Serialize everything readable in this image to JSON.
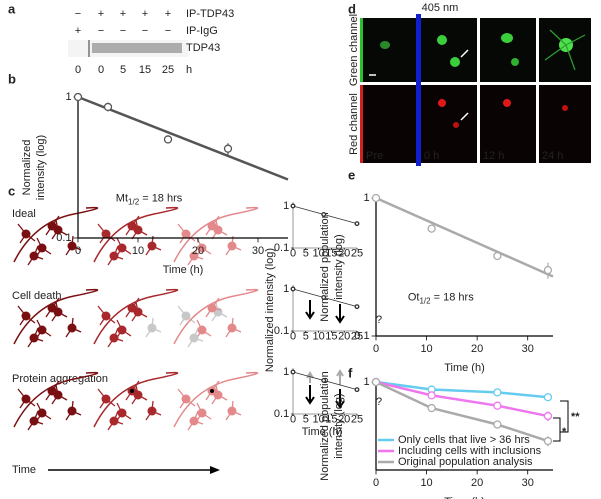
{
  "panel_labels": [
    "a",
    "b",
    "c",
    "d",
    "e",
    "f"
  ],
  "blot": {
    "rows": [
      {
        "label": "IP-TDP43",
        "marks": [
          "−",
          "+",
          "+",
          "+",
          "+"
        ]
      },
      {
        "label": "IP-IgG",
        "marks": [
          "+",
          "−",
          "−",
          "−",
          "−"
        ]
      }
    ],
    "band_label": "TDP43",
    "times": [
      "0",
      "0",
      "5",
      "15",
      "25"
    ],
    "unit": "h"
  },
  "diagram": {
    "rows": [
      "Ideal",
      "Cell death",
      "Protein aggregation"
    ],
    "time_label": "Time",
    "question_marks": [
      "?",
      "?"
    ],
    "ylabel": "Normalized intensity (log)",
    "xlabel": "Time (h)"
  },
  "images": {
    "stimulus": "405 nm",
    "channels": [
      "Green channel",
      "Red channel"
    ],
    "timepoints": [
      "Pre",
      "0 h",
      "12 h",
      "24 h"
    ]
  },
  "chart_data": [
    {
      "type": "line",
      "xlim": [
        0,
        35
      ],
      "ylim": [
        0.1,
        1
      ],
      "log_y": true,
      "xticks": [
        0,
        10,
        20,
        30
      ],
      "yticks": [
        0.1,
        1
      ],
      "xlabel": "Time (h)",
      "ylabel": [
        "Normalized",
        "intensity (log)"
      ],
      "annotation": {
        "text": "Mt",
        "sub": "1/2",
        "rest": " = 18 hrs"
      },
      "series": [
        {
          "mode": "line",
          "color": "#555555",
          "x": [
            0,
            35
          ],
          "values": [
            1,
            0.26
          ]
        },
        {
          "mode": "markers",
          "color": "#555555",
          "x": [
            0,
            5,
            15,
            25
          ],
          "values": [
            1,
            0.85,
            0.5,
            0.43
          ],
          "errors": [
            0.03,
            0.06,
            0.03,
            0.04
          ]
        }
      ]
    },
    {
      "type": "line",
      "xlim": [
        0,
        35
      ],
      "ylim": [
        0.1,
        1
      ],
      "log_y": true,
      "xticks": [
        0,
        10,
        20,
        30
      ],
      "yticks": [
        0.1,
        1
      ],
      "xlabel": "Time (h)",
      "ylabel": [
        "Normalized population",
        "intensity (log)"
      ],
      "annotation": {
        "text": "Ot",
        "sub": "1/2",
        "rest": " = 18 hrs"
      },
      "series": [
        {
          "mode": "line",
          "color": "#aaaaaa",
          "x": [
            0,
            35
          ],
          "values": [
            1,
            0.27
          ]
        },
        {
          "mode": "markers",
          "color": "#aaaaaa",
          "x": [
            0,
            11,
            24,
            34
          ],
          "values": [
            1,
            0.6,
            0.38,
            0.3
          ],
          "errors": [
            0.02,
            0.04,
            0.02,
            0.04
          ]
        }
      ]
    },
    {
      "type": "line",
      "xlim": [
        0,
        35
      ],
      "ylim": [
        0.15,
        1
      ],
      "log_y": true,
      "xticks": [
        0,
        10,
        20,
        30
      ],
      "yticks": [
        1
      ],
      "xlabel": "Time (h)",
      "ylabel": [
        "Normalized population",
        "intensity (log)"
      ],
      "legend": "lower left",
      "significance": [
        "**",
        "*"
      ],
      "series": [
        {
          "name": "Only cells that live > 36 hrs",
          "mode": "both",
          "color": "#66ccee",
          "x": [
            0,
            11,
            24,
            34
          ],
          "values": [
            1,
            0.85,
            0.8,
            0.72
          ],
          "errors": [
            0.01,
            0.02,
            0.02,
            0.02
          ]
        },
        {
          "name": "Including cells with inclusions",
          "mode": "both",
          "color": "#ee77ee",
          "x": [
            0,
            11,
            24,
            34
          ],
          "values": [
            1,
            0.75,
            0.6,
            0.48
          ],
          "errors": [
            0.01,
            0.03,
            0.03,
            0.05
          ]
        },
        {
          "name": "Original population analysis",
          "mode": "both",
          "color": "#aaaaaa",
          "x": [
            0,
            11,
            24,
            34
          ],
          "values": [
            1,
            0.57,
            0.4,
            0.28
          ],
          "errors": [
            0.01,
            0.03,
            0.02,
            0.03
          ]
        }
      ]
    },
    {
      "type": "line",
      "xlim": [
        0,
        25
      ],
      "ylim": [
        0.1,
        1
      ],
      "log_y": true,
      "xticks": [
        0,
        5,
        10,
        15,
        20,
        25
      ],
      "yticks": [
        0.1,
        1
      ],
      "series": [
        {
          "mode": "line",
          "color": "#333333",
          "x": [
            0,
            25
          ],
          "values": [
            1,
            0.38
          ]
        },
        {
          "mode": "markers",
          "color": "#333333",
          "x": [
            0,
            12,
            25
          ],
          "values": [
            1,
            0.63,
            0.38
          ]
        }
      ]
    },
    {
      "type": "line",
      "xlim": [
        0,
        25
      ],
      "ylim": [
        0.1,
        1
      ],
      "log_y": true,
      "xticks": [
        0,
        5,
        10,
        15,
        20,
        25
      ],
      "yticks": [
        0.1,
        1
      ],
      "series": [
        {
          "mode": "line",
          "color": "#333333",
          "x": [
            0,
            25
          ],
          "values": [
            1,
            0.38
          ]
        },
        {
          "mode": "markers",
          "color": "#333333",
          "x": [
            0,
            12,
            25
          ],
          "values": [
            1,
            0.63,
            0.38
          ]
        }
      ]
    },
    {
      "type": "line",
      "xlim": [
        0,
        25
      ],
      "ylim": [
        0.1,
        1
      ],
      "log_y": true,
      "xticks": [
        0,
        5,
        10,
        15,
        20,
        25
      ],
      "yticks": [
        0.1,
        1
      ],
      "series": [
        {
          "mode": "line",
          "color": "#333333",
          "x": [
            0,
            25
          ],
          "values": [
            1,
            0.38
          ]
        },
        {
          "mode": "markers",
          "color": "#333333",
          "x": [
            0,
            12,
            25
          ],
          "values": [
            1,
            0.63,
            0.38
          ]
        }
      ]
    }
  ]
}
